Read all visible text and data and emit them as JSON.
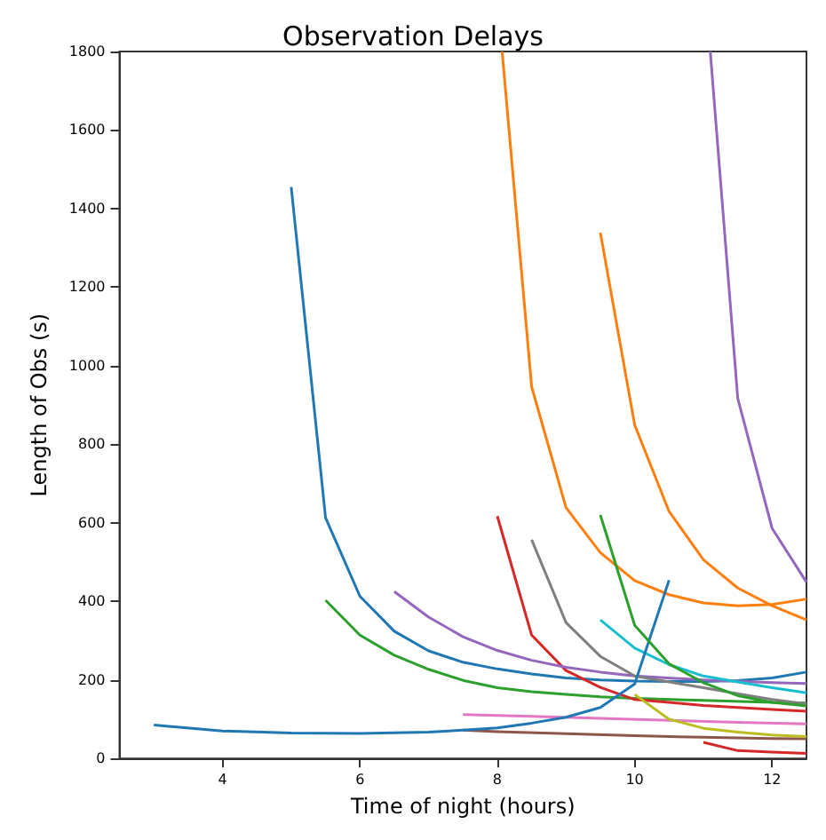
{
  "chart_data": {
    "type": "line",
    "title": "Observation Delays",
    "xlabel": "Time of night (hours)",
    "ylabel": "Length of Obs (s)",
    "xlim": [
      2.5,
      12.5
    ],
    "xticks": [
      4,
      6,
      8,
      10,
      12
    ],
    "ylim": [
      0,
      1800
    ],
    "yticks": [
      0,
      200,
      400,
      600,
      800,
      1000,
      1200,
      1400,
      1600,
      1800
    ],
    "grid": false,
    "series": [
      {
        "color": "#1f77b4",
        "x": [
          5,
          5.5,
          6,
          6.5,
          7,
          7.5,
          8,
          8.5,
          9,
          9.5,
          10,
          10.5,
          11,
          11.5,
          12,
          12.5
        ],
        "values": [
          1455,
          613,
          413,
          324,
          274,
          245,
          228,
          215,
          205,
          200,
          197,
          196,
          196,
          198,
          205,
          220
        ]
      },
      {
        "color": "#ff7f0e",
        "x": [
          8.07,
          8.5,
          9,
          9.5,
          10,
          10.5,
          11,
          11.5,
          12,
          12.5
        ],
        "values": [
          1800,
          946,
          639,
          524,
          453,
          417,
          396,
          389,
          392,
          406
        ]
      },
      {
        "color": "#2ca02c",
        "x": [
          5.5,
          6,
          6.5,
          7,
          7.5,
          8,
          8.5,
          9,
          9.5,
          10,
          11,
          12,
          12.5
        ],
        "values": [
          403,
          314,
          263,
          227,
          199,
          180,
          170,
          163,
          157,
          153,
          148,
          143,
          141
        ]
      },
      {
        "color": "#d62728",
        "x": [
          8,
          8.5,
          9,
          9.5,
          10,
          10.5,
          11,
          11.5,
          12,
          12.5
        ],
        "values": [
          617,
          314,
          224,
          181,
          150,
          143,
          135,
          130,
          125,
          120
        ]
      },
      {
        "color": "#9467bd",
        "x": [
          6.5,
          7,
          7.5,
          8,
          8.5,
          9,
          9.5,
          10,
          11,
          12,
          12.5
        ],
        "values": [
          425,
          360,
          310,
          275,
          250,
          232,
          220,
          210,
          200,
          193,
          191
        ]
      },
      {
        "color": "#8c564b",
        "x": [
          7.5,
          8,
          9,
          10,
          11,
          12,
          12.5
        ],
        "values": [
          72,
          68,
          63,
          58,
          54,
          51,
          50
        ]
      },
      {
        "color": "#e377c2",
        "x": [
          7.5,
          8.5,
          9.5,
          10.5,
          11.5,
          12.5
        ],
        "values": [
          112,
          107,
          102,
          97,
          92,
          88
        ]
      },
      {
        "color": "#7f7f7f",
        "x": [
          8.5,
          9,
          9.5,
          10,
          10.5,
          11,
          11.5,
          12,
          12.5
        ],
        "values": [
          557,
          346,
          260,
          210,
          195,
          180,
          165,
          150,
          139
        ]
      },
      {
        "color": "#bcbd22",
        "x": [
          10,
          10.5,
          11,
          11.5,
          12,
          12.5
        ],
        "values": [
          163,
          100,
          77,
          67,
          60,
          56
        ]
      },
      {
        "color": "#17becf",
        "x": [
          9.5,
          10,
          10.5,
          11,
          11.5,
          12,
          12.5
        ],
        "values": [
          353,
          281,
          239,
          210,
          195,
          180,
          167
        ]
      },
      {
        "color": "#1f77b4",
        "x": [
          3,
          4,
          5,
          6,
          7,
          7.5,
          8,
          8.5,
          9,
          9.5,
          10,
          10.5
        ],
        "values": [
          85,
          70,
          65,
          64,
          67,
          72,
          78,
          90,
          105,
          130,
          190,
          454
        ]
      },
      {
        "color": "#ff7f0e",
        "x": [
          9.5,
          10,
          10.5,
          11,
          11.5,
          12,
          12.5
        ],
        "values": [
          1339,
          849,
          629,
          506,
          434,
          389,
          353
        ]
      },
      {
        "color": "#2ca02c",
        "x": [
          9.5,
          10,
          10.5,
          11,
          11.5,
          12,
          12.5
        ],
        "values": [
          620,
          339,
          241,
          193,
          160,
          143,
          134
        ]
      },
      {
        "color": "#d62728",
        "x": [
          11,
          11.5,
          12,
          12.5
        ],
        "values": [
          41,
          20,
          16,
          13
        ]
      },
      {
        "color": "#9467bd",
        "x": [
          11.1,
          11.5,
          12,
          12.5
        ],
        "values": [
          1800,
          917,
          586,
          449
        ]
      }
    ]
  }
}
